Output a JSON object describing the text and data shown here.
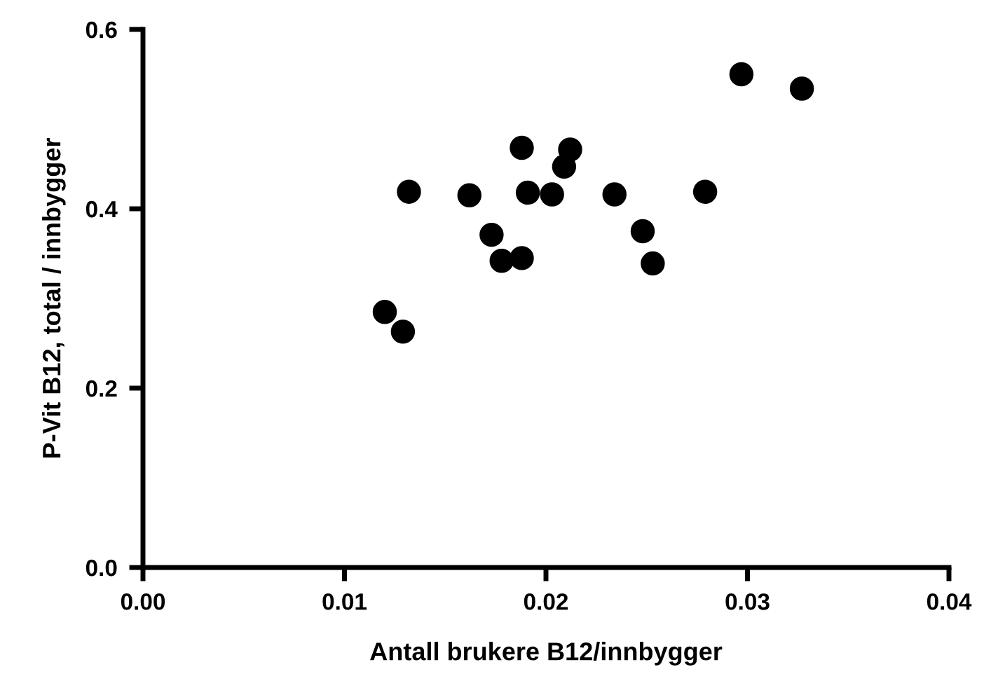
{
  "chart_data": {
    "type": "scatter",
    "xlabel": "Antall brukere B12/innbygger",
    "ylabel": "P-Vit B12, total / innbygger",
    "series": [
      {
        "color": "#000000",
        "x": [
          0.012,
          0.0129,
          0.0132,
          0.0162,
          0.0173,
          0.0178,
          0.0188,
          0.0188,
          0.0191,
          0.0203,
          0.0209,
          0.0212,
          0.0234,
          0.0248,
          0.0253,
          0.0279,
          0.0297,
          0.0327
        ],
        "values": [
          0.285,
          0.263,
          0.419,
          0.415,
          0.371,
          0.342,
          0.468,
          0.345,
          0.418,
          0.416,
          0.447,
          0.466,
          0.416,
          0.375,
          0.339,
          0.419,
          0.55,
          0.534
        ]
      }
    ],
    "xlim": [
      0,
      0.04
    ],
    "ylim": [
      0,
      0.6
    ],
    "xticks": [
      {
        "value": 0,
        "label": "0.00"
      },
      0.01,
      0.02,
      0.03,
      0.04
    ],
    "yticks": [
      {
        "value": 0,
        "label": "0.0"
      },
      0.2,
      0.4,
      0.6
    ],
    "grid": false,
    "legend": false,
    "marker": "circle"
  }
}
